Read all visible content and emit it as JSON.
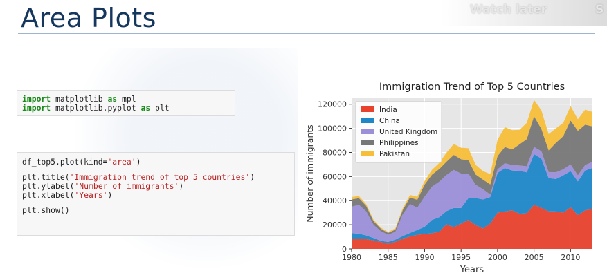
{
  "slide": {
    "title": "Area Plots"
  },
  "overlay": {
    "watch_later": "Watch later",
    "share": "S"
  },
  "code_cells": {
    "imports": {
      "line1_kw1": "import",
      "line1_mod": " matplotlib ",
      "line1_kw2": "as",
      "line1_alias": " mpl",
      "line2_kw1": "import",
      "line2_mod": " matplotlib.pyplot ",
      "line2_kw2": "as",
      "line2_alias": " plt"
    },
    "plot": {
      "l1_pre": "df_top5.plot(kind=",
      "l1_str": "'area'",
      "l1_post": ")",
      "l2_pre": "plt.title(",
      "l2_str": "'Immigration trend of top 5 countries'",
      "l2_post": ")",
      "l3_pre": "plt.ylabel(",
      "l3_str": "'Number of immigrants'",
      "l3_post": ")",
      "l4_pre": "plt.xlabel(",
      "l4_str": "'Years'",
      "l4_post": ")",
      "l5": "plt.show()"
    }
  },
  "chart_data": {
    "type": "area",
    "title": "Immigration Trend of Top 5 Countries",
    "xlabel": "Years",
    "ylabel": "Number of immigrants",
    "xlim": [
      1980,
      2013
    ],
    "ylim": [
      0,
      125000
    ],
    "xticks": [
      1980,
      1985,
      1990,
      1995,
      2000,
      2005,
      2010
    ],
    "yticks": [
      0,
      20000,
      40000,
      60000,
      80000,
      100000,
      120000
    ],
    "xtick_labels": [
      "1980",
      "1985",
      "1990",
      "1995",
      "2000",
      "2005",
      "2010"
    ],
    "ytick_labels": [
      "0",
      "20000",
      "40000",
      "60000",
      "80000",
      "100000",
      "120000"
    ],
    "grid": true,
    "legend_position": "upper-left",
    "background": "#e6e6e6",
    "x": [
      1980,
      1981,
      1982,
      1983,
      1984,
      1985,
      1986,
      1987,
      1988,
      1989,
      1990,
      1991,
      1992,
      1993,
      1994,
      1995,
      1996,
      1997,
      1998,
      1999,
      2000,
      2001,
      2002,
      2003,
      2004,
      2005,
      2006,
      2007,
      2008,
      2009,
      2010,
      2011,
      2012,
      2013
    ],
    "series": [
      {
        "name": "India",
        "color": "#e8412e",
        "values": [
          8000,
          8600,
          8100,
          7000,
          5700,
          4200,
          5900,
          8600,
          10200,
          11700,
          12300,
          13000,
          14200,
          20300,
          18000,
          20900,
          24000,
          19700,
          17000,
          21000,
          30000,
          31000,
          32000,
          29200,
          29500,
          36600,
          34000,
          31200,
          31000,
          30000,
          34500,
          28000,
          32000,
          33100
        ]
      },
      {
        "name": "China",
        "color": "#1d87c8",
        "values": [
          5000,
          4000,
          3000,
          2000,
          1000,
          1500,
          1800,
          2000,
          3000,
          4000,
          6000,
          11000,
          12000,
          11000,
          16000,
          13000,
          18000,
          22500,
          24000,
          22000,
          33000,
          36000,
          33000,
          35500,
          34000,
          42000,
          41000,
          27500,
          27000,
          31000,
          30000,
          28000,
          33000,
          34000
        ]
      },
      {
        "name": "United Kingdom",
        "color": "#9b8fd9",
        "values": [
          22000,
          24000,
          20000,
          11000,
          8000,
          6000,
          6500,
          18000,
          24000,
          18500,
          25000,
          27500,
          29500,
          30000,
          31500,
          28500,
          20500,
          11000,
          8500,
          2000,
          3000,
          4000,
          4500,
          4500,
          5000,
          6000,
          6000,
          5000,
          5500,
          5000,
          5500,
          5000,
          4500,
          5000
        ]
      },
      {
        "name": "Philippines",
        "color": "#777777",
        "values": [
          6000,
          5500,
          4500,
          3000,
          2000,
          1500,
          1800,
          3500,
          5500,
          6500,
          10000,
          10000,
          10500,
          11000,
          12500,
          12000,
          11000,
          8500,
          8000,
          8500,
          11000,
          13500,
          13000,
          17500,
          22500,
          25500,
          18500,
          18000,
          24500,
          27500,
          36500,
          37000,
          33500,
          29500
        ]
      },
      {
        "name": "Pakistan",
        "color": "#f7be3a",
        "values": [
          2000,
          1800,
          1500,
          1200,
          1000,
          800,
          1200,
          1500,
          2000,
          2500,
          3000,
          4000,
          5000,
          7500,
          9000,
          9500,
          10000,
          8000,
          7000,
          8500,
          13500,
          16500,
          16000,
          12000,
          13500,
          13500,
          15500,
          13500,
          12000,
          11000,
          12000,
          9500,
          12500,
          12000
        ]
      }
    ]
  }
}
